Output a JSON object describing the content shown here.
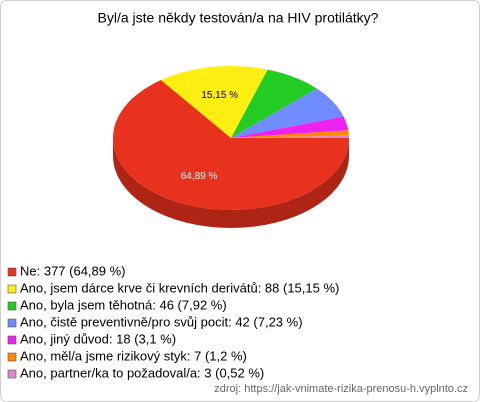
{
  "chart_data": {
    "type": "pie",
    "title": "Byl/a jste někdy testován/a na HIV protilátky?",
    "categories": [
      "Ne: 377 (64,89 %)",
      "Ano, jsem dárce krve či krevních derivátů: 88 (15,15 %)",
      "Ano, byla jsem těhotná: 46 (7,92 %)",
      "Ano, čistě preventivně/pro svůj pocit: 42 (7,23 %)",
      "Ano, jiný důvod: 18 (3,1 %)",
      "Ano, měl/a jsme rizikový styk: 7 (1,2 %)",
      "Ano, partner/ka to požadoval/a: 3 (0,52 %)"
    ],
    "values": [
      64.89,
      15.15,
      7.92,
      7.23,
      3.1,
      1.2,
      0.52
    ],
    "value_labels": [
      "64,89 %",
      "15,15 %",
      null,
      null,
      null,
      null,
      null
    ],
    "colors": [
      "#e8321e",
      "#ffee11",
      "#22cc22",
      "#6f8cff",
      "#ee22ee",
      "#ff8a00",
      "#dd88cc"
    ],
    "source": "zdroj: https://jak-vnimate-rizika-prenosu-h.vyplnto.cz"
  }
}
